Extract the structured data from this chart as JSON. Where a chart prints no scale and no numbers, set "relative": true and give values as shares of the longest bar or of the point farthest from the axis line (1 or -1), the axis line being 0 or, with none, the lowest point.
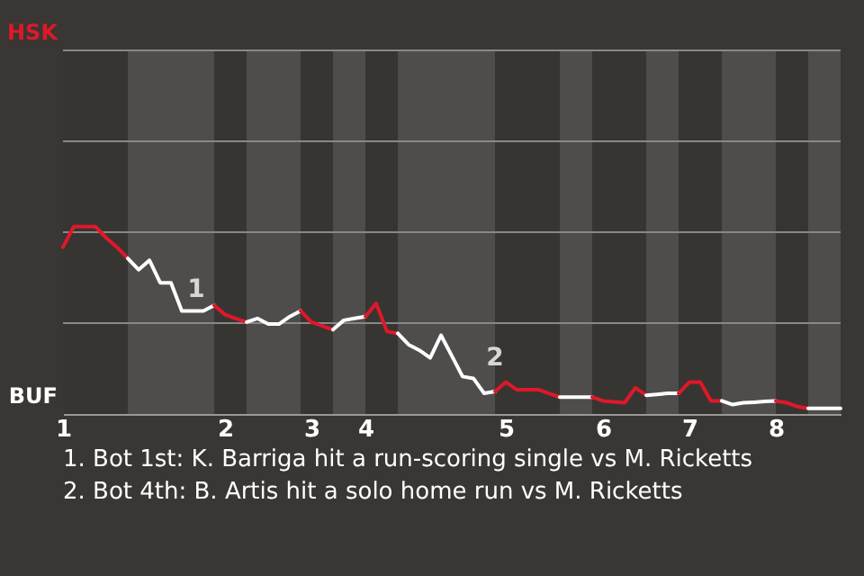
{
  "chart_data": {
    "type": "line",
    "relative": true,
    "categories": [
      "1",
      null,
      null,
      null,
      null,
      null,
      null,
      null,
      null,
      null,
      null,
      null,
      null,
      null,
      null,
      "2",
      null,
      null,
      null,
      null,
      null,
      null,
      null,
      "3",
      null,
      null,
      null,
      null,
      "4",
      null,
      null,
      null,
      null,
      null,
      null,
      null,
      null,
      null,
      null,
      null,
      null,
      "5",
      null,
      null,
      null,
      null,
      null,
      null,
      null,
      null,
      "6",
      null,
      null,
      null,
      null,
      null,
      null,
      null,
      "7",
      null,
      null,
      null,
      null,
      null,
      null,
      null,
      "8",
      null,
      null,
      null,
      null,
      null,
      null
    ],
    "marker": "none",
    "line_style": "solid",
    "ref_lines": [
      {
        "axis": "y",
        "value": 0.485,
        "color": "#8a8886"
      },
      {
        "axis": "y",
        "value": 0.97,
        "color": "#8a8886"
      },
      {
        "axis": "y",
        "value": 1.455,
        "color": "#8a8886"
      },
      {
        "axis": "y",
        "value": 1.94,
        "color": "#8a8886"
      }
    ],
    "series": [
      {
        "color": "#e0182a",
        "values": [
          0.89,
          1.0,
          1.0,
          1.0,
          0.94,
          0.89,
          0.83,
          null,
          null,
          null,
          null,
          null,
          null,
          null,
          null,
          null,
          null,
          null,
          null,
          null,
          null,
          null,
          null,
          null,
          null,
          null,
          null,
          null,
          null,
          null,
          null,
          null,
          null,
          null,
          null,
          null,
          null,
          null,
          null,
          null,
          null,
          null,
          null,
          null,
          null,
          null,
          null,
          null,
          null,
          null,
          null,
          null,
          null,
          null,
          null,
          null,
          null,
          null,
          null,
          null,
          null,
          null,
          null,
          null,
          null,
          null,
          null,
          null,
          null,
          null,
          null,
          null,
          null
        ]
      },
      {
        "color": "#ffffff",
        "values": [
          null,
          null,
          null,
          null,
          null,
          null,
          0.83,
          0.77,
          0.82,
          0.7,
          0.7,
          0.55,
          0.55,
          0.55,
          0.58,
          null,
          null,
          null,
          null,
          null,
          null,
          null,
          null,
          null,
          null,
          null,
          null,
          null,
          null,
          null,
          null,
          null,
          null,
          null,
          null,
          null,
          null,
          null,
          null,
          null,
          null,
          null,
          null,
          null,
          null,
          null,
          null,
          null,
          null,
          null,
          null,
          null,
          null,
          null,
          null,
          null,
          null,
          null,
          null,
          null,
          null,
          null,
          null,
          null,
          null,
          null,
          null,
          null,
          null,
          null,
          null,
          null,
          null
        ]
      },
      {
        "color": "#e0182a",
        "values": [
          null,
          null,
          null,
          null,
          null,
          null,
          null,
          null,
          null,
          null,
          null,
          null,
          null,
          null,
          0.58,
          0.53,
          0.51,
          0.49,
          null,
          null,
          null,
          null,
          null,
          null,
          null,
          null,
          null,
          null,
          null,
          null,
          null,
          null,
          null,
          null,
          null,
          null,
          null,
          null,
          null,
          null,
          null,
          null,
          null,
          null,
          null,
          null,
          null,
          null,
          null,
          null,
          null,
          null,
          null,
          null,
          null,
          null,
          null,
          null,
          null,
          null,
          null,
          null,
          null,
          null,
          null,
          null,
          null,
          null,
          null,
          null,
          null,
          null,
          null
        ]
      },
      {
        "color": "#ffffff",
        "values": [
          null,
          null,
          null,
          null,
          null,
          null,
          null,
          null,
          null,
          null,
          null,
          null,
          null,
          null,
          null,
          null,
          null,
          0.49,
          0.51,
          0.48,
          0.48,
          0.52,
          0.55,
          null,
          null,
          null,
          null,
          null,
          null,
          null,
          null,
          null,
          null,
          null,
          null,
          null,
          null,
          null,
          null,
          null,
          null,
          null,
          null,
          null,
          null,
          null,
          null,
          null,
          null,
          null,
          null,
          null,
          null,
          null,
          null,
          null,
          null,
          null,
          null,
          null,
          null,
          null,
          null,
          null,
          null,
          null,
          null,
          null,
          null,
          null,
          null,
          null,
          null
        ]
      },
      {
        "color": "#e0182a",
        "values": [
          null,
          null,
          null,
          null,
          null,
          null,
          null,
          null,
          null,
          null,
          null,
          null,
          null,
          null,
          null,
          null,
          null,
          null,
          null,
          null,
          null,
          null,
          0.55,
          0.49,
          0.47,
          0.45,
          null,
          null,
          null,
          null,
          null,
          null,
          null,
          null,
          null,
          null,
          null,
          null,
          null,
          null,
          null,
          null,
          null,
          null,
          null,
          null,
          null,
          null,
          null,
          null,
          null,
          null,
          null,
          null,
          null,
          null,
          null,
          null,
          null,
          null,
          null,
          null,
          null,
          null,
          null,
          null,
          null,
          null,
          null,
          null,
          null,
          null,
          null
        ]
      },
      {
        "color": "#ffffff",
        "values": [
          null,
          null,
          null,
          null,
          null,
          null,
          null,
          null,
          null,
          null,
          null,
          null,
          null,
          null,
          null,
          null,
          null,
          null,
          null,
          null,
          null,
          null,
          null,
          null,
          null,
          0.45,
          0.5,
          0.51,
          0.52,
          null,
          null,
          null,
          null,
          null,
          null,
          null,
          null,
          null,
          null,
          null,
          null,
          null,
          null,
          null,
          null,
          null,
          null,
          null,
          null,
          null,
          null,
          null,
          null,
          null,
          null,
          null,
          null,
          null,
          null,
          null,
          null,
          null,
          null,
          null,
          null,
          null,
          null,
          null,
          null,
          null,
          null,
          null,
          null
        ]
      },
      {
        "color": "#e0182a",
        "values": [
          null,
          null,
          null,
          null,
          null,
          null,
          null,
          null,
          null,
          null,
          null,
          null,
          null,
          null,
          null,
          null,
          null,
          null,
          null,
          null,
          null,
          null,
          null,
          null,
          null,
          null,
          null,
          null,
          0.52,
          0.59,
          0.44,
          0.43,
          null,
          null,
          null,
          null,
          null,
          null,
          null,
          null,
          null,
          null,
          null,
          null,
          null,
          null,
          null,
          null,
          null,
          null,
          null,
          null,
          null,
          null,
          null,
          null,
          null,
          null,
          null,
          null,
          null,
          null,
          null,
          null,
          null,
          null,
          null,
          null,
          null,
          null,
          null,
          null,
          null
        ]
      },
      {
        "color": "#ffffff",
        "values": [
          null,
          null,
          null,
          null,
          null,
          null,
          null,
          null,
          null,
          null,
          null,
          null,
          null,
          null,
          null,
          null,
          null,
          null,
          null,
          null,
          null,
          null,
          null,
          null,
          null,
          null,
          null,
          null,
          null,
          null,
          null,
          0.43,
          0.37,
          0.34,
          0.3,
          0.42,
          0.31,
          0.2,
          0.19,
          0.11,
          0.12,
          null,
          null,
          null,
          null,
          null,
          null,
          null,
          null,
          null,
          null,
          null,
          null,
          null,
          null,
          null,
          null,
          null,
          null,
          null,
          null,
          null,
          null,
          null,
          null,
          null,
          null,
          null,
          null,
          null,
          null,
          null,
          null
        ]
      },
      {
        "color": "#e0182a",
        "values": [
          null,
          null,
          null,
          null,
          null,
          null,
          null,
          null,
          null,
          null,
          null,
          null,
          null,
          null,
          null,
          null,
          null,
          null,
          null,
          null,
          null,
          null,
          null,
          null,
          null,
          null,
          null,
          null,
          null,
          null,
          null,
          null,
          null,
          null,
          null,
          null,
          null,
          null,
          null,
          null,
          0.12,
          0.17,
          0.13,
          0.13,
          0.13,
          0.11,
          0.09,
          null,
          null,
          null,
          null,
          null,
          null,
          null,
          null,
          null,
          null,
          null,
          null,
          null,
          null,
          null,
          null,
          null,
          null,
          null,
          null,
          null,
          null,
          null,
          null,
          null,
          null
        ]
      },
      {
        "color": "#ffffff",
        "values": [
          null,
          null,
          null,
          null,
          null,
          null,
          null,
          null,
          null,
          null,
          null,
          null,
          null,
          null,
          null,
          null,
          null,
          null,
          null,
          null,
          null,
          null,
          null,
          null,
          null,
          null,
          null,
          null,
          null,
          null,
          null,
          null,
          null,
          null,
          null,
          null,
          null,
          null,
          null,
          null,
          null,
          null,
          null,
          null,
          null,
          null,
          0.09,
          0.09,
          0.09,
          0.09,
          null,
          null,
          null,
          null,
          null,
          null,
          null,
          null,
          null,
          null,
          null,
          null,
          null,
          null,
          null,
          null,
          null,
          null,
          null,
          null,
          null,
          null,
          null
        ]
      },
      {
        "color": "#e0182a",
        "values": [
          null,
          null,
          null,
          null,
          null,
          null,
          null,
          null,
          null,
          null,
          null,
          null,
          null,
          null,
          null,
          null,
          null,
          null,
          null,
          null,
          null,
          null,
          null,
          null,
          null,
          null,
          null,
          null,
          null,
          null,
          null,
          null,
          null,
          null,
          null,
          null,
          null,
          null,
          null,
          null,
          null,
          null,
          null,
          null,
          null,
          null,
          null,
          null,
          null,
          0.09,
          0.07,
          0.065,
          0.06,
          0.14,
          0.1,
          null,
          null,
          null,
          null,
          null,
          null,
          null,
          null,
          null,
          null,
          null,
          null,
          null,
          null,
          null,
          null,
          null,
          null
        ]
      },
      {
        "color": "#ffffff",
        "values": [
          null,
          null,
          null,
          null,
          null,
          null,
          null,
          null,
          null,
          null,
          null,
          null,
          null,
          null,
          null,
          null,
          null,
          null,
          null,
          null,
          null,
          null,
          null,
          null,
          null,
          null,
          null,
          null,
          null,
          null,
          null,
          null,
          null,
          null,
          null,
          null,
          null,
          null,
          null,
          null,
          null,
          null,
          null,
          null,
          null,
          null,
          null,
          null,
          null,
          null,
          null,
          null,
          null,
          null,
          0.1,
          0.105,
          0.11,
          0.11,
          null,
          null,
          null,
          null,
          null,
          null,
          null,
          null,
          null,
          null,
          null,
          null,
          null,
          null,
          null
        ]
      },
      {
        "color": "#e0182a",
        "values": [
          null,
          null,
          null,
          null,
          null,
          null,
          null,
          null,
          null,
          null,
          null,
          null,
          null,
          null,
          null,
          null,
          null,
          null,
          null,
          null,
          null,
          null,
          null,
          null,
          null,
          null,
          null,
          null,
          null,
          null,
          null,
          null,
          null,
          null,
          null,
          null,
          null,
          null,
          null,
          null,
          null,
          null,
          null,
          null,
          null,
          null,
          null,
          null,
          null,
          null,
          null,
          null,
          null,
          null,
          null,
          null,
          null,
          0.11,
          0.17,
          0.17,
          0.07,
          0.07,
          null,
          null,
          null,
          null,
          null,
          null,
          null,
          null,
          null,
          null,
          null
        ]
      },
      {
        "color": "#ffffff",
        "values": [
          null,
          null,
          null,
          null,
          null,
          null,
          null,
          null,
          null,
          null,
          null,
          null,
          null,
          null,
          null,
          null,
          null,
          null,
          null,
          null,
          null,
          null,
          null,
          null,
          null,
          null,
          null,
          null,
          null,
          null,
          null,
          null,
          null,
          null,
          null,
          null,
          null,
          null,
          null,
          null,
          null,
          null,
          null,
          null,
          null,
          null,
          null,
          null,
          null,
          null,
          null,
          null,
          null,
          null,
          null,
          null,
          null,
          null,
          null,
          null,
          null,
          0.07,
          0.05,
          0.06,
          0.063,
          0.067,
          0.07,
          null,
          null,
          null,
          null,
          null,
          null
        ]
      },
      {
        "color": "#e0182a",
        "values": [
          null,
          null,
          null,
          null,
          null,
          null,
          null,
          null,
          null,
          null,
          null,
          null,
          null,
          null,
          null,
          null,
          null,
          null,
          null,
          null,
          null,
          null,
          null,
          null,
          null,
          null,
          null,
          null,
          null,
          null,
          null,
          null,
          null,
          null,
          null,
          null,
          null,
          null,
          null,
          null,
          null,
          null,
          null,
          null,
          null,
          null,
          null,
          null,
          null,
          null,
          null,
          null,
          null,
          null,
          null,
          null,
          null,
          null,
          null,
          null,
          null,
          null,
          null,
          null,
          null,
          null,
          0.07,
          0.06,
          0.04,
          0.03,
          null,
          null,
          null
        ]
      },
      {
        "color": "#ffffff",
        "values": [
          null,
          null,
          null,
          null,
          null,
          null,
          null,
          null,
          null,
          null,
          null,
          null,
          null,
          null,
          null,
          null,
          null,
          null,
          null,
          null,
          null,
          null,
          null,
          null,
          null,
          null,
          null,
          null,
          null,
          null,
          null,
          null,
          null,
          null,
          null,
          null,
          null,
          null,
          null,
          null,
          null,
          null,
          null,
          null,
          null,
          null,
          null,
          null,
          null,
          null,
          null,
          null,
          null,
          null,
          null,
          null,
          null,
          null,
          null,
          null,
          null,
          null,
          null,
          null,
          null,
          null,
          null,
          null,
          null,
          0.03,
          0.03,
          0.03,
          0.03
        ]
      }
    ],
    "annotations": [
      "HSK",
      "BUF",
      "1",
      "2",
      "1. Bot 1st: K. Barriga hit a run-scoring single vs M. Ricketts",
      "2. Bot 4th: B. Artis hit a solo home run vs M. Ricketts"
    ]
  }
}
